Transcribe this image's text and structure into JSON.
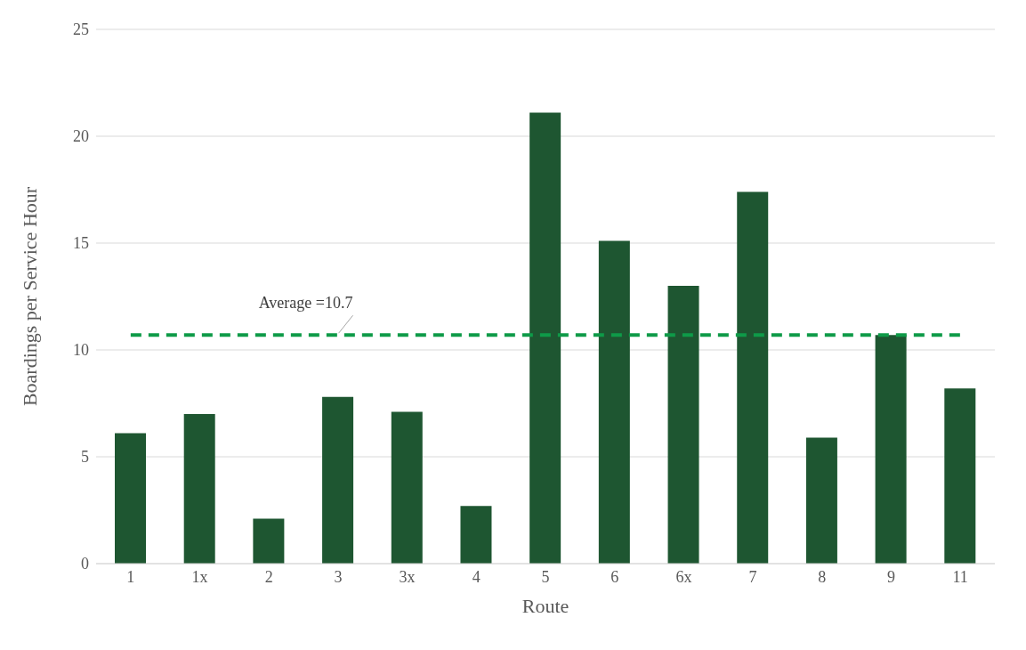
{
  "chart_data": {
    "type": "bar",
    "xlabel": "Route",
    "ylabel": "Boardings per Service Hour",
    "categories": [
      "1",
      "1x",
      "2",
      "3",
      "3x",
      "4",
      "5",
      "6",
      "6x",
      "7",
      "8",
      "9",
      "11"
    ],
    "values": [
      6.1,
      7.0,
      2.1,
      7.8,
      7.1,
      2.7,
      21.1,
      15.1,
      13.0,
      17.4,
      5.9,
      10.7,
      8.2
    ],
    "color": "#1e5631",
    "ylim": [
      0,
      25
    ],
    "yticks": [
      0,
      5,
      10,
      15,
      20,
      25
    ],
    "grid": "y",
    "ref_lines": [
      {
        "axis": "y",
        "value": 10.7,
        "label": "Average =10.7",
        "color": "#0e9a48",
        "line_style": "dashed"
      }
    ]
  }
}
